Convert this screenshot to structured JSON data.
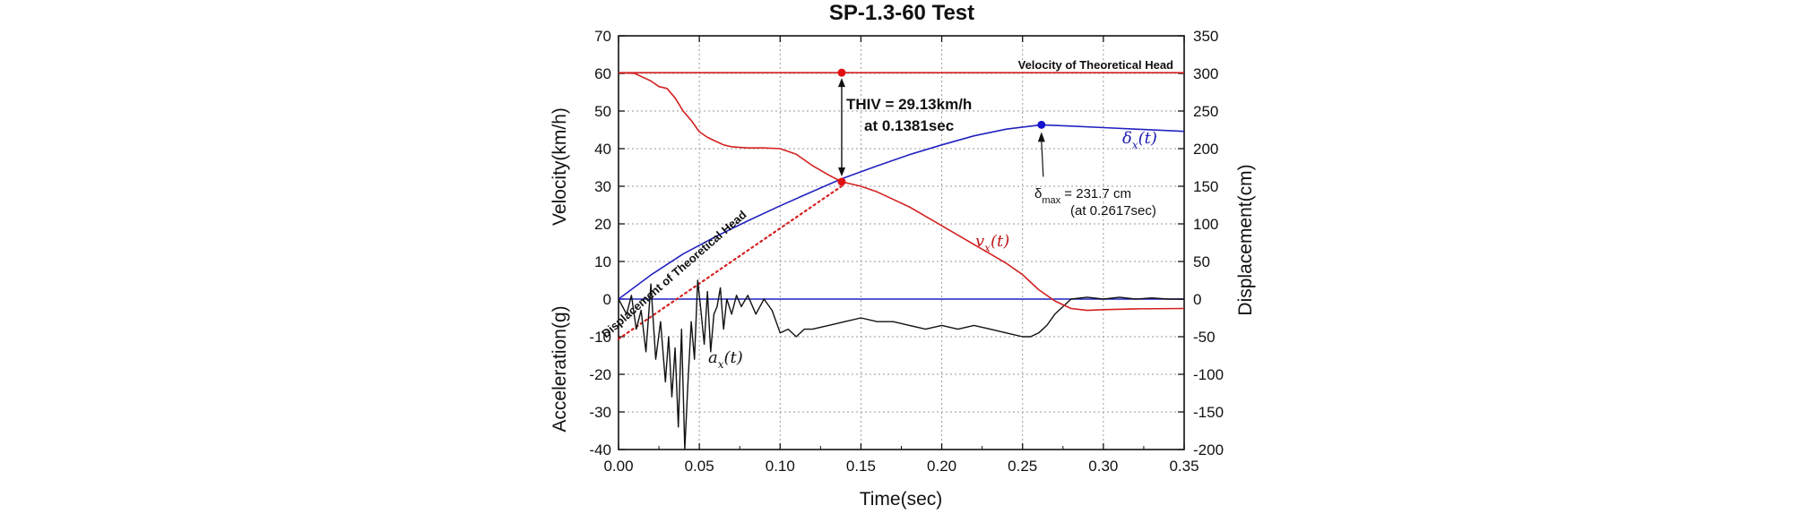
{
  "chart_data": {
    "type": "line",
    "title": "SP-1.3-60 Test",
    "xlabel": "Time(sec)",
    "ylabel_left_top": "Velocity(km/h)",
    "ylabel_left_bottom": "Acceleration(g)",
    "ylabel_right": "Displacement(cm)",
    "xlim": [
      0,
      0.35
    ],
    "ylim_left": [
      -40,
      70
    ],
    "ylim_right": [
      -200,
      350
    ],
    "grid": true,
    "x_ticks": [
      "0.00",
      "0.05",
      "0.10",
      "0.15",
      "0.20",
      "0.25",
      "0.30",
      "0.35"
    ],
    "y_left_ticks": [
      "-40",
      "-30",
      "-20",
      "-10",
      "0",
      "10",
      "20",
      "30",
      "40",
      "50",
      "60",
      "70"
    ],
    "y_right_ticks": [
      "-200",
      "-150",
      "-100",
      "-50",
      "0",
      "50",
      "100",
      "150",
      "200",
      "250",
      "300",
      "350"
    ],
    "series": [
      {
        "name": "Velocity of Theoretical Head",
        "axis": "left",
        "color": "#d42020",
        "x": [
          0,
          0.35
        ],
        "y": [
          60.2,
          60.2
        ]
      },
      {
        "name": "Displacement of Theoretical Head",
        "axis": "right",
        "color": "#d42020",
        "dotted": true,
        "x": [
          0,
          0.138
        ],
        "y": [
          -53,
          150
        ]
      },
      {
        "name": "v_x(t)",
        "axis": "left",
        "color": "#d42020",
        "x": [
          0,
          0.01,
          0.015,
          0.02,
          0.025,
          0.03,
          0.035,
          0.04,
          0.045,
          0.05,
          0.055,
          0.06,
          0.065,
          0.07,
          0.08,
          0.09,
          0.1,
          0.11,
          0.12,
          0.13,
          0.1381,
          0.15,
          0.16,
          0.17,
          0.18,
          0.19,
          0.2,
          0.21,
          0.22,
          0.23,
          0.24,
          0.25,
          0.26,
          0.27,
          0.28,
          0.29,
          0.3,
          0.32,
          0.35
        ],
        "y": [
          60.2,
          60.0,
          59.0,
          58.0,
          56.5,
          56.0,
          53.5,
          50.0,
          47.5,
          44.5,
          43.0,
          42.0,
          41.0,
          40.5,
          40.2,
          40.2,
          40.0,
          38.5,
          35.5,
          33.0,
          31.2,
          30.0,
          28.5,
          26.5,
          24.5,
          22.0,
          19.5,
          17.0,
          14.5,
          12.0,
          9.5,
          6.5,
          2.5,
          -0.5,
          -2.5,
          -3.0,
          -2.8,
          -2.6,
          -2.5
        ]
      },
      {
        "name": "δ_x(t)",
        "axis": "right",
        "color": "#2222c0",
        "x": [
          0,
          0.02,
          0.04,
          0.06,
          0.08,
          0.1,
          0.12,
          0.1381,
          0.16,
          0.18,
          0.2,
          0.22,
          0.24,
          0.2617,
          0.28,
          0.3,
          0.32,
          0.35
        ],
        "y": [
          0,
          32,
          60,
          83,
          104,
          124,
          143,
          160,
          177,
          192,
          205,
          217,
          226,
          231.7,
          230,
          228,
          226,
          223
        ]
      },
      {
        "name": "zero line",
        "axis": "left",
        "color": "#2222c0",
        "x": [
          0,
          0.35
        ],
        "y": [
          0,
          0
        ]
      },
      {
        "name": "a_x(t)",
        "axis": "left",
        "color": "#111111",
        "x": [
          0,
          0.005,
          0.008,
          0.011,
          0.014,
          0.017,
          0.02,
          0.023,
          0.026,
          0.029,
          0.031,
          0.033,
          0.035,
          0.037,
          0.039,
          0.041,
          0.043,
          0.045,
          0.047,
          0.049,
          0.051,
          0.053,
          0.055,
          0.057,
          0.059,
          0.061,
          0.063,
          0.065,
          0.067,
          0.07,
          0.073,
          0.076,
          0.08,
          0.085,
          0.09,
          0.095,
          0.1,
          0.105,
          0.11,
          0.115,
          0.12,
          0.13,
          0.14,
          0.15,
          0.16,
          0.17,
          0.18,
          0.19,
          0.2,
          0.21,
          0.22,
          0.23,
          0.24,
          0.25,
          0.255,
          0.26,
          0.265,
          0.27,
          0.28,
          0.29,
          0.3,
          0.31,
          0.32,
          0.33,
          0.34,
          0.35
        ],
        "y": [
          0,
          -4,
          1,
          -8,
          -3,
          -14,
          4,
          -16,
          -6,
          -22,
          -10,
          -26,
          -13,
          -34,
          -8,
          -40,
          -22,
          -6,
          -16,
          5,
          -3,
          -12,
          2,
          -14,
          -4,
          -2,
          3,
          -8,
          0,
          -4,
          1,
          -2,
          1,
          -4,
          0,
          -3,
          -9,
          -8,
          -10,
          -8,
          -8,
          -7,
          -6,
          -5,
          -6,
          -6,
          -7,
          -8,
          -7,
          -8,
          -7,
          -8,
          -9,
          -10,
          -10,
          -9,
          -7,
          -4,
          0,
          0.5,
          0,
          0.5,
          0,
          0.3,
          0,
          0
        ]
      }
    ],
    "annotations": {
      "velocity_series_label": "Velocity of Theoretical Head",
      "displacement_series_label": "Displacement of Theoretical Head",
      "thiv_line1": "THIV = 29.13km/h",
      "thiv_line2": "at 0.1381sec",
      "delta_max_symbol": "δ",
      "delta_max_sub": "max",
      "delta_max_value": " = 231.7 cm",
      "delta_max_time": "(at 0.2617sec)",
      "vx_label_main": "v",
      "vx_label_sub": "x",
      "vx_label_arg": "(t)",
      "dx_label_main": "δ",
      "dx_label_sub": "x",
      "dx_label_arg": "(t)",
      "ax_label_main": "a",
      "ax_label_sub": "x",
      "ax_label_arg": "(t)"
    },
    "markers": [
      {
        "x": 0.1381,
        "y_left": 60.2,
        "color": "#e01010"
      },
      {
        "x": 0.1381,
        "y_left": 31.2,
        "color": "#e01010"
      },
      {
        "x": 0.2617,
        "y_right": 231.7,
        "color": "#1414d0"
      }
    ]
  }
}
